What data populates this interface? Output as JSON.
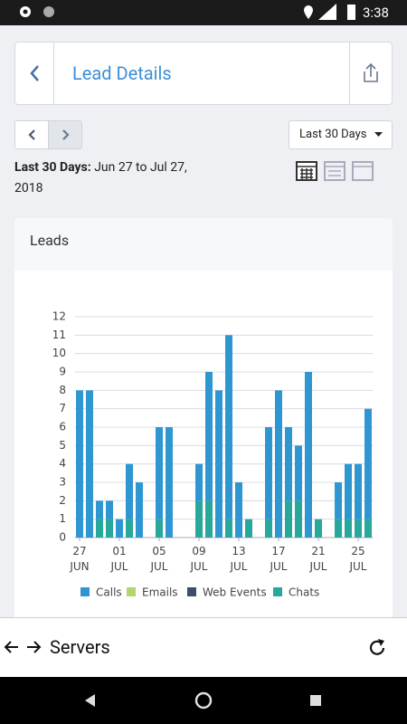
{
  "status_bar": {
    "time": "3:38"
  },
  "header": {
    "title": "Lead Details"
  },
  "range_select": "Last 30 Days",
  "date_range": {
    "label": "Last 30 Days:",
    "value": "Jun 27 to Jul 27, 2018"
  },
  "card": {
    "title": "Leads"
  },
  "bottom_bar": {
    "title": "Servers"
  },
  "chart_data": {
    "type": "stacked_bar",
    "categories": [
      "27 JUN",
      null,
      null,
      null,
      "01 JUL",
      null,
      null,
      null,
      "05 JUL",
      null,
      null,
      null,
      "09 JUL",
      null,
      null,
      null,
      "13 JUL",
      null,
      null,
      null,
      "17 JUL",
      null,
      null,
      null,
      "21 JUL",
      null,
      null,
      null,
      "25 JUL",
      null
    ],
    "series": [
      {
        "name": "Calls",
        "color": "#2e97d1",
        "values": [
          8,
          8,
          1,
          1,
          1,
          3,
          3,
          0,
          5,
          6,
          0,
          0,
          2,
          7,
          8,
          10,
          3,
          0,
          0,
          5,
          8,
          4,
          3,
          9,
          0,
          0,
          2,
          3,
          3,
          6
        ]
      },
      {
        "name": "Emails",
        "color": "#b5d46b",
        "values": [
          0,
          0,
          0,
          0,
          0,
          0,
          0,
          0,
          0,
          0,
          0,
          0,
          0,
          0,
          0,
          0,
          0,
          0,
          0,
          0,
          0,
          0,
          0,
          0,
          0,
          0,
          0,
          0,
          0,
          0
        ]
      },
      {
        "name": "Web Events",
        "color": "#3d4e6b",
        "values": [
          0,
          0,
          0,
          0,
          0,
          0,
          0,
          0,
          0,
          0,
          0,
          0,
          0,
          0,
          0,
          0,
          0,
          0,
          0,
          0,
          0,
          0,
          0,
          0,
          0,
          0,
          0,
          0,
          0,
          0
        ]
      },
      {
        "name": "Chats",
        "color": "#27a89b",
        "values": [
          0,
          0,
          1,
          1,
          0,
          1,
          0,
          0,
          1,
          0,
          0,
          0,
          2,
          2,
          0,
          1,
          0,
          1,
          0,
          1,
          0,
          2,
          2,
          0,
          1,
          0,
          1,
          1,
          1,
          1
        ]
      }
    ],
    "ylim": [
      0,
      12
    ],
    "yticks": [
      0,
      1,
      2,
      3,
      4,
      5,
      6,
      7,
      8,
      9,
      10,
      11,
      12
    ],
    "grid": true
  }
}
